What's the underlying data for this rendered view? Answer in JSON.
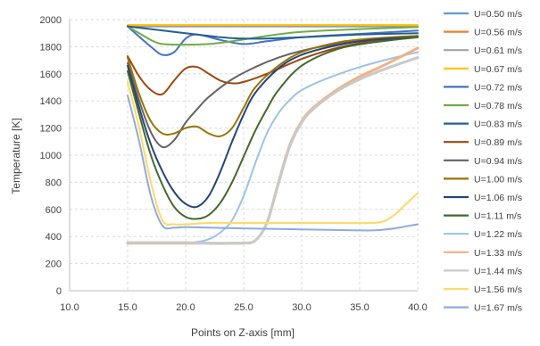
{
  "chart_data": {
    "type": "line",
    "title": "",
    "xlabel": "Points on Z-axis [mm]",
    "ylabel": "Temperature [K]",
    "xlim": [
      10,
      40
    ],
    "ylim": [
      0,
      2000
    ],
    "x_ticks": [
      "10.0",
      "15.0",
      "20.0",
      "25.0",
      "30.0",
      "35.0",
      "40.0"
    ],
    "y_ticks": [
      "0",
      "200",
      "400",
      "600",
      "800",
      "1000",
      "1200",
      "1400",
      "1600",
      "1800",
      "2000"
    ],
    "grid": true,
    "legend_position": "right",
    "series": [
      {
        "name": "U=0.50 m/s",
        "color": "#5b9bd5",
        "points": [
          [
            15,
            1950
          ],
          [
            20,
            1950
          ],
          [
            25,
            1950
          ],
          [
            30,
            1950
          ],
          [
            35,
            1950
          ],
          [
            40,
            1950
          ]
        ]
      },
      {
        "name": "U=0.56 m/s",
        "color": "#ed7d31",
        "points": [
          [
            15,
            1955
          ],
          [
            20,
            1955
          ],
          [
            25,
            1955
          ],
          [
            30,
            1955
          ],
          [
            35,
            1955
          ],
          [
            40,
            1955
          ]
        ]
      },
      {
        "name": "U=0.61 m/s",
        "color": "#a5a5a5",
        "points": [
          [
            15,
            1958
          ],
          [
            20,
            1958
          ],
          [
            25,
            1958
          ],
          [
            30,
            1958
          ],
          [
            35,
            1958
          ],
          [
            40,
            1958
          ]
        ]
      },
      {
        "name": "U=0.67 m/s",
        "color": "#ffc000",
        "points": [
          [
            15,
            1960
          ],
          [
            20,
            1960
          ],
          [
            25,
            1960
          ],
          [
            30,
            1960
          ],
          [
            35,
            1960
          ],
          [
            40,
            1960
          ]
        ]
      },
      {
        "name": "U=0.72 m/s",
        "color": "#4472c4",
        "points": [
          [
            15,
            1950
          ],
          [
            17,
            1800
          ],
          [
            18,
            1740
          ],
          [
            19,
            1760
          ],
          [
            20,
            1860
          ],
          [
            21,
            1890
          ],
          [
            23,
            1850
          ],
          [
            25,
            1820
          ],
          [
            27,
            1840
          ],
          [
            30,
            1870
          ],
          [
            35,
            1895
          ],
          [
            40,
            1920
          ]
        ]
      },
      {
        "name": "U=0.78 m/s",
        "color": "#70ad47",
        "points": [
          [
            15,
            1950
          ],
          [
            16,
            1900
          ],
          [
            17,
            1850
          ],
          [
            18,
            1820
          ],
          [
            20,
            1815
          ],
          [
            22,
            1820
          ],
          [
            24,
            1840
          ],
          [
            27,
            1880
          ],
          [
            30,
            1910
          ],
          [
            35,
            1930
          ],
          [
            40,
            1945
          ]
        ]
      },
      {
        "name": "U=0.83 m/s",
        "color": "#255e91",
        "points": [
          [
            15,
            1950
          ],
          [
            17,
            1930
          ],
          [
            19,
            1910
          ],
          [
            21,
            1890
          ],
          [
            23,
            1870
          ],
          [
            25,
            1860
          ],
          [
            27,
            1860
          ],
          [
            30,
            1870
          ],
          [
            35,
            1890
          ],
          [
            40,
            1900
          ]
        ]
      },
      {
        "name": "U=0.89 m/s",
        "color": "#9e480e",
        "points": [
          [
            15,
            1730
          ],
          [
            16,
            1580
          ],
          [
            17,
            1480
          ],
          [
            18,
            1450
          ],
          [
            19,
            1550
          ],
          [
            20,
            1640
          ],
          [
            21,
            1650
          ],
          [
            22,
            1600
          ],
          [
            23,
            1550
          ],
          [
            24,
            1530
          ],
          [
            25,
            1540
          ],
          [
            27,
            1600
          ],
          [
            30,
            1710
          ],
          [
            33,
            1790
          ],
          [
            36,
            1840
          ],
          [
            40,
            1880
          ]
        ]
      },
      {
        "name": "U=0.94 m/s",
        "color": "#636363",
        "points": [
          [
            15,
            1680
          ],
          [
            16,
            1400
          ],
          [
            17,
            1170
          ],
          [
            18,
            1060
          ],
          [
            19,
            1110
          ],
          [
            20,
            1240
          ],
          [
            21,
            1340
          ],
          [
            22,
            1430
          ],
          [
            24,
            1560
          ],
          [
            26,
            1650
          ],
          [
            28,
            1720
          ],
          [
            30,
            1770
          ],
          [
            33,
            1820
          ],
          [
            36,
            1850
          ],
          [
            40,
            1880
          ]
        ]
      },
      {
        "name": "U=1.00 m/s",
        "color": "#997300",
        "points": [
          [
            15,
            1720
          ],
          [
            16,
            1450
          ],
          [
            17,
            1250
          ],
          [
            18,
            1160
          ],
          [
            19,
            1160
          ],
          [
            20,
            1200
          ],
          [
            21,
            1210
          ],
          [
            22,
            1160
          ],
          [
            23,
            1140
          ],
          [
            24,
            1200
          ],
          [
            25,
            1350
          ],
          [
            26,
            1500
          ],
          [
            28,
            1660
          ],
          [
            30,
            1760
          ],
          [
            33,
            1830
          ],
          [
            36,
            1860
          ],
          [
            40,
            1880
          ]
        ]
      },
      {
        "name": "U=1.06 m/s",
        "color": "#264478",
        "points": [
          [
            15,
            1660
          ],
          [
            16,
            1350
          ],
          [
            17,
            1080
          ],
          [
            18,
            880
          ],
          [
            19,
            730
          ],
          [
            20,
            640
          ],
          [
            21,
            620
          ],
          [
            22,
            700
          ],
          [
            23,
            880
          ],
          [
            24,
            1100
          ],
          [
            25,
            1300
          ],
          [
            26,
            1460
          ],
          [
            28,
            1640
          ],
          [
            30,
            1740
          ],
          [
            33,
            1810
          ],
          [
            36,
            1850
          ],
          [
            40,
            1870
          ]
        ]
      },
      {
        "name": "U=1.11 m/s",
        "color": "#43682b",
        "points": [
          [
            15,
            1620
          ],
          [
            16,
            1300
          ],
          [
            17,
            1000
          ],
          [
            18,
            780
          ],
          [
            19,
            620
          ],
          [
            20,
            545
          ],
          [
            21,
            530
          ],
          [
            22,
            560
          ],
          [
            23,
            650
          ],
          [
            24,
            800
          ],
          [
            25,
            990
          ],
          [
            26,
            1180
          ],
          [
            27,
            1340
          ],
          [
            28,
            1480
          ],
          [
            30,
            1660
          ],
          [
            33,
            1780
          ],
          [
            36,
            1830
          ],
          [
            40,
            1870
          ]
        ]
      },
      {
        "name": "U=1.22 m/s",
        "color": "#9dc3e6",
        "points": [
          [
            15,
            350
          ],
          [
            17,
            350
          ],
          [
            19,
            350
          ],
          [
            20,
            352
          ],
          [
            21,
            360
          ],
          [
            22,
            380
          ],
          [
            23,
            430
          ],
          [
            24,
            520
          ],
          [
            25,
            700
          ],
          [
            26,
            940
          ],
          [
            27,
            1160
          ],
          [
            28,
            1310
          ],
          [
            29,
            1410
          ],
          [
            30,
            1480
          ],
          [
            32,
            1560
          ],
          [
            35,
            1650
          ],
          [
            38,
            1720
          ],
          [
            40,
            1760
          ]
        ]
      },
      {
        "name": "U=1.33 m/s",
        "color": "#f4b183",
        "points": [
          [
            15,
            350
          ],
          [
            18,
            350
          ],
          [
            20,
            350
          ],
          [
            22,
            350
          ],
          [
            24,
            350
          ],
          [
            25,
            352
          ],
          [
            26,
            370
          ],
          [
            27,
            500
          ],
          [
            28,
            800
          ],
          [
            29,
            1080
          ],
          [
            30,
            1250
          ],
          [
            31,
            1350
          ],
          [
            33,
            1480
          ],
          [
            35,
            1580
          ],
          [
            37,
            1660
          ],
          [
            40,
            1790
          ]
        ]
      },
      {
        "name": "U=1.44 m/s",
        "color": "#c9c9c9",
        "points": [
          [
            15,
            355
          ],
          [
            18,
            355
          ],
          [
            20,
            355
          ],
          [
            22,
            350
          ],
          [
            24,
            350
          ],
          [
            25,
            352
          ],
          [
            26,
            370
          ],
          [
            27,
            500
          ],
          [
            28,
            790
          ],
          [
            29,
            1070
          ],
          [
            30,
            1240
          ],
          [
            31,
            1340
          ],
          [
            33,
            1470
          ],
          [
            35,
            1560
          ],
          [
            37,
            1630
          ],
          [
            40,
            1720
          ]
        ]
      },
      {
        "name": "U=1.56 m/s",
        "color": "#ffd966",
        "points": [
          [
            15,
            1540
          ],
          [
            16,
            1200
          ],
          [
            17,
            800
          ],
          [
            18,
            520
          ],
          [
            19,
            490
          ],
          [
            20,
            490
          ],
          [
            22,
            500
          ],
          [
            24,
            500
          ],
          [
            26,
            500
          ],
          [
            28,
            500
          ],
          [
            30,
            500
          ],
          [
            32,
            500
          ],
          [
            34,
            500
          ],
          [
            36,
            500
          ],
          [
            37,
            510
          ],
          [
            38,
            560
          ],
          [
            39,
            640
          ],
          [
            40,
            720
          ]
        ]
      },
      {
        "name": "U=1.67 m/s",
        "color": "#8faadc",
        "points": [
          [
            15,
            1440
          ],
          [
            16,
            1100
          ],
          [
            17,
            700
          ],
          [
            18,
            480
          ],
          [
            19,
            465
          ],
          [
            20,
            470
          ],
          [
            22,
            465
          ],
          [
            25,
            460
          ],
          [
            28,
            455
          ],
          [
            30,
            452
          ],
          [
            33,
            448
          ],
          [
            35,
            445
          ],
          [
            36,
            445
          ],
          [
            37,
            450
          ],
          [
            38,
            460
          ],
          [
            39,
            475
          ],
          [
            40,
            490
          ]
        ]
      }
    ]
  }
}
